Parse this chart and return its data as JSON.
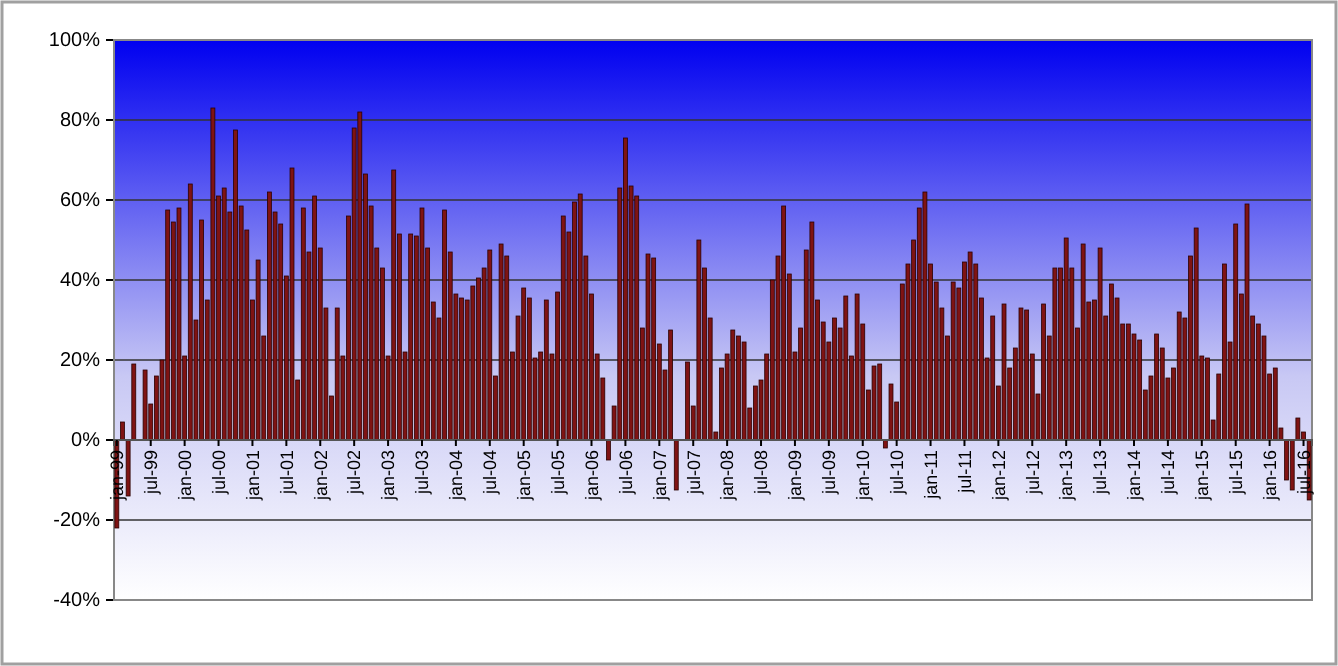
{
  "chart_data": {
    "type": "bar",
    "categories": [
      "jan-99",
      null,
      null,
      null,
      null,
      null,
      "jul-99",
      null,
      null,
      null,
      null,
      null,
      "jan-00",
      null,
      null,
      null,
      null,
      null,
      "jul-00",
      null,
      null,
      null,
      null,
      null,
      "jan-01",
      null,
      null,
      null,
      null,
      null,
      "jul-01",
      null,
      null,
      null,
      null,
      null,
      "jan-02",
      null,
      null,
      null,
      null,
      null,
      "jul-02",
      null,
      null,
      null,
      null,
      null,
      "jan-03",
      null,
      null,
      null,
      null,
      null,
      "jul-03",
      null,
      null,
      null,
      null,
      null,
      "jan-04",
      null,
      null,
      null,
      null,
      null,
      "jul-04",
      null,
      null,
      null,
      null,
      null,
      "jan-05",
      null,
      null,
      null,
      null,
      null,
      "jul-05",
      null,
      null,
      null,
      null,
      null,
      "jan-06",
      null,
      null,
      null,
      null,
      null,
      "jul-06",
      null,
      null,
      null,
      null,
      null,
      "jan-07",
      null,
      null,
      null,
      null,
      null,
      "jul-07",
      null,
      null,
      null,
      null,
      null,
      "jan-08",
      null,
      null,
      null,
      null,
      null,
      "jul-08",
      null,
      null,
      null,
      null,
      null,
      "jan-09",
      null,
      null,
      null,
      null,
      null,
      "jul-09",
      null,
      null,
      null,
      null,
      null,
      "jan-10",
      null,
      null,
      null,
      null,
      null,
      "jul-10",
      null,
      null,
      null,
      null,
      null,
      "jan-11",
      null,
      null,
      null,
      null,
      null,
      "jul-11",
      null,
      null,
      null,
      null,
      null,
      "jan-12",
      null,
      null,
      null,
      null,
      null,
      "jul-12",
      null,
      null,
      null,
      null,
      null,
      "jan-13",
      null,
      null,
      null,
      null,
      null,
      "jul-13",
      null,
      null,
      null,
      null,
      null,
      "jan-14",
      null,
      null,
      null,
      null,
      null,
      "jul-14",
      null,
      null,
      null,
      null,
      null,
      "jan-15",
      null,
      null,
      null,
      null,
      null,
      "jul-15",
      null,
      null,
      null,
      null,
      null,
      "jan-16",
      null,
      null,
      null,
      null,
      null,
      "jul-16",
      null
    ],
    "values": [
      -22,
      4.5,
      -14,
      19,
      0,
      17.5,
      9,
      16,
      20,
      57.5,
      54.5,
      58,
      21,
      64,
      30,
      55,
      35,
      83,
      61,
      63,
      57,
      77.5,
      58.5,
      52.5,
      35,
      45,
      26,
      62,
      57,
      54,
      41,
      68,
      15,
      58,
      47,
      61,
      48,
      33,
      11,
      33,
      21,
      56,
      78,
      82,
      66.5,
      58.5,
      48,
      43,
      21,
      67.5,
      51.5,
      22,
      51.5,
      51,
      58,
      48,
      34.5,
      30.5,
      57.5,
      47,
      36.5,
      35.5,
      35,
      38.5,
      40.5,
      43,
      47.5,
      16,
      49,
      46,
      22,
      31,
      38,
      35.5,
      20.5,
      22,
      35,
      21.5,
      37,
      56,
      52,
      59.5,
      61.5,
      46,
      36.5,
      21.5,
      15.5,
      -5,
      8.5,
      63,
      75.5,
      63.5,
      61,
      28,
      46.5,
      45.5,
      24,
      17.5,
      27.5,
      -12.5,
      0,
      19.5,
      8.5,
      50,
      43,
      30.5,
      2,
      18,
      21.5,
      27.5,
      26,
      24.5,
      8,
      13.5,
      15,
      21.5,
      40,
      46,
      58.5,
      41.5,
      22,
      28,
      47.5,
      54.5,
      35,
      29.5,
      24.5,
      30.5,
      28,
      36,
      21,
      36.5,
      29,
      12.5,
      18.5,
      19,
      -2,
      14,
      9.5,
      39,
      44,
      50,
      58,
      62,
      44,
      39.5,
      33,
      26,
      39.5,
      38,
      44.5,
      47,
      44,
      35.5,
      20.5,
      31,
      13.5,
      34,
      18,
      23,
      33,
      32.5,
      21.5,
      11.5,
      34,
      26,
      43,
      43,
      50.5,
      43,
      28,
      49,
      34.5,
      35,
      48,
      31,
      39,
      35.5,
      29,
      29,
      26.5,
      25,
      12.5,
      16,
      26.5,
      23,
      15.5,
      18,
      32,
      30.5,
      46,
      53,
      21,
      20.5,
      5,
      16.5,
      44,
      24.5,
      54,
      36.5,
      59,
      31,
      29,
      26,
      16.5,
      18,
      3,
      -10,
      -12.5,
      5.5,
      2,
      -15
    ],
    "color": "#7f1313",
    "ylim": [
      -40,
      100
    ],
    "yticks": [
      {
        "value": -40,
        "label": "-40%"
      },
      {
        "value": -20,
        "label": "-20%"
      },
      {
        "value": 0,
        "label": "0%"
      },
      {
        "value": 20,
        "label": "20%"
      },
      {
        "value": 40,
        "label": "40%"
      },
      {
        "value": 60,
        "label": "60%"
      },
      {
        "value": 80,
        "label": "80%"
      },
      {
        "value": 100,
        "label": "100%"
      }
    ],
    "grid": "y"
  }
}
